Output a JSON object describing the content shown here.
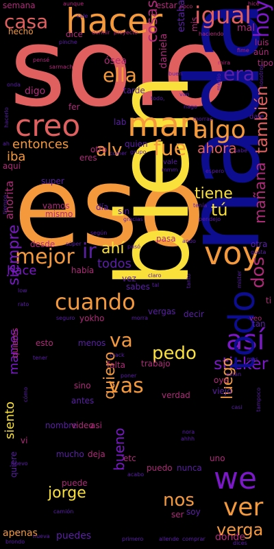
{
  "palette": {
    "background": "#000000",
    "coral": "#e0605f",
    "orange": "#f59a3c",
    "yellow": "#f9e03a",
    "navy": "#0d0d8f",
    "purple": "#7b18c8",
    "magenta": "#b02a7a",
    "violet": "#5c1fa8"
  },
  "words": [
    {
      "text": "solo",
      "color": "#e0605f"
    },
    {
      "text": "eso",
      "color": "#f59a3c"
    },
    {
      "text": "nada",
      "color": "#0d0d8f"
    },
    {
      "text": "bien",
      "color": "#f9e03a"
    },
    {
      "text": "hacer",
      "color": "#f59a3c"
    },
    {
      "text": "igual",
      "color": "#e0605f"
    },
    {
      "text": "casa",
      "color": "#e0605f"
    },
    {
      "text": "creo",
      "color": "#e0605f"
    },
    {
      "text": "man",
      "color": "#f59a3c"
    },
    {
      "text": "algo",
      "color": "#f59a3c"
    },
    {
      "text": "ella",
      "color": "#f59a3c"
    },
    {
      "text": "era",
      "color": "#5c1fa8"
    },
    {
      "text": "hoy",
      "color": "#7b18c8"
    },
    {
      "text": "cosas",
      "color": "#b02a7a"
    },
    {
      "text": "entonces",
      "color": "#f59a3c"
    },
    {
      "text": "alv",
      "color": "#f59a3c"
    },
    {
      "text": "fue",
      "color": "#f59a3c"
    },
    {
      "text": "ahora",
      "color": "#e0605f"
    },
    {
      "text": "también",
      "color": "#e0605f"
    },
    {
      "text": "iba",
      "color": "#f59a3c"
    },
    {
      "text": "tiene",
      "color": "#f9e03a"
    },
    {
      "text": "tú",
      "color": "#f9e03a"
    },
    {
      "text": "mejor",
      "color": "#f59a3c"
    },
    {
      "text": "ir",
      "color": "#5c1fa8"
    },
    {
      "text": "ahí",
      "color": "#f9e03a"
    },
    {
      "text": "todos",
      "color": "#5c1fa8"
    },
    {
      "text": "hace",
      "color": "#7b18c8"
    },
    {
      "text": "ahorita",
      "color": "#b02a7a"
    },
    {
      "text": "voy",
      "color": "#f59a3c"
    },
    {
      "text": "mañana",
      "color": "#b02a7a"
    },
    {
      "text": "dos",
      "color": "#b02a7a"
    },
    {
      "text": "cuando",
      "color": "#f59a3c"
    },
    {
      "text": "así",
      "color": "#7b18c8"
    },
    {
      "text": "siempre",
      "color": "#7b18c8"
    },
    {
      "text": "va",
      "color": "#f59a3c"
    },
    {
      "text": "pedo",
      "color": "#f9e03a"
    },
    {
      "text": "sticker",
      "color": "#7b18c8"
    },
    {
      "text": "vas",
      "color": "#f59a3c"
    },
    {
      "text": "todo",
      "color": "#0d0d8f"
    },
    {
      "text": "quiero",
      "color": "#f59a3c"
    },
    {
      "text": "mames",
      "color": "#7b18c8"
    },
    {
      "text": "luego",
      "color": "#f59a3c"
    },
    {
      "text": "siento",
      "color": "#f9e03a"
    },
    {
      "text": "we",
      "color": "#7b18c8"
    },
    {
      "text": "jorge",
      "color": "#f9e03a"
    },
    {
      "text": "bueno",
      "color": "#7b18c8"
    },
    {
      "text": "nos",
      "color": "#f59a3c"
    },
    {
      "text": "ver",
      "color": "#f59a3c"
    },
    {
      "text": "verga",
      "color": "#f59a3c"
    },
    {
      "text": "apenas",
      "color": "#f59a3c"
    },
    {
      "text": "puedes",
      "color": "#5c1fa8"
    },
    {
      "text": "donde",
      "color": "#b02a7a"
    },
    {
      "text": "semana",
      "color": "#b02a7a"
    },
    {
      "text": "hecho",
      "color": "#f59a3c"
    },
    {
      "text": "dice",
      "color": "#b02a7a"
    },
    {
      "text": "estar",
      "color": "#b02a7a"
    },
    {
      "text": "estaba",
      "color": "#5c1fa8"
    },
    {
      "text": "mis",
      "color": "#b02a7a"
    },
    {
      "text": "mal",
      "color": "#b02a7a"
    },
    {
      "text": "luis",
      "color": "#b02a7a"
    },
    {
      "text": "aún",
      "color": "#b02a7a"
    },
    {
      "text": "tipo",
      "color": "#b02a7a"
    },
    {
      "text": "ósea",
      "color": "#b02a7a"
    },
    {
      "text": "daniela",
      "color": "#b02a7a"
    },
    {
      "text": "tarde",
      "color": "#5c1fa8"
    },
    {
      "text": "digo",
      "color": "#b02a7a"
    },
    {
      "text": "fer",
      "color": "#b02a7a"
    },
    {
      "text": "lab",
      "color": "#5c1fa8"
    },
    {
      "text": "quien",
      "color": "#5c1fa8"
    },
    {
      "text": "otro",
      "color": "#b02a7a"
    },
    {
      "text": "eres",
      "color": "#b02a7a"
    },
    {
      "text": "aquí",
      "color": "#b02a7a"
    },
    {
      "text": "super",
      "color": "#5c1fa8"
    },
    {
      "text": "vamos",
      "color": "#b02a7a"
    },
    {
      "text": "mismo",
      "color": "#b02a7a"
    },
    {
      "text": "día",
      "color": "#5c1fa8"
    },
    {
      "text": "sin",
      "color": "#5c1fa8"
    },
    {
      "text": "desde",
      "color": "#b02a7a"
    },
    {
      "text": "pasa",
      "color": "#b02a7a"
    },
    {
      "text": "otra",
      "color": "#5c1fa8"
    },
    {
      "text": "había",
      "color": "#b02a7a"
    },
    {
      "text": "vez",
      "color": "#5c1fa8"
    },
    {
      "text": "sabes",
      "color": "#5c1fa8"
    },
    {
      "text": "yokho",
      "color": "#b02a7a"
    },
    {
      "text": "vergas",
      "color": "#5c1fa8"
    },
    {
      "text": "decir",
      "color": "#5c1fa8"
    },
    {
      "text": "tan",
      "color": "#5c1fa8"
    },
    {
      "text": "veo",
      "color": "#b02a7a"
    },
    {
      "text": "esto",
      "color": "#b02a7a"
    },
    {
      "text": "menos",
      "color": "#5c1fa8"
    },
    {
      "text": "quieres",
      "color": "#b02a7a"
    },
    {
      "text": "falta",
      "color": "#b02a7a"
    },
    {
      "text": "trabajo",
      "color": "#b02a7a"
    },
    {
      "text": "oye",
      "color": "#b02a7a"
    },
    {
      "text": "sino",
      "color": "#b02a7a"
    },
    {
      "text": "antes",
      "color": "#5c1fa8"
    },
    {
      "text": "verdad",
      "color": "#b02a7a"
    },
    {
      "text": "viejo",
      "color": "#5c1fa8"
    },
    {
      "text": "nombre",
      "color": "#5c1fa8"
    },
    {
      "text": "video",
      "color": "#b02a7a"
    },
    {
      "text": "asi",
      "color": "#b02a7a"
    },
    {
      "text": "mucho",
      "color": "#5c1fa8"
    },
    {
      "text": "deja",
      "color": "#b02a7a"
    },
    {
      "text": "etc",
      "color": "#b02a7a"
    },
    {
      "text": "puedo",
      "color": "#b02a7a"
    },
    {
      "text": "nunca",
      "color": "#5c1fa8"
    },
    {
      "text": "uno",
      "color": "#b02a7a"
    },
    {
      "text": "quiere",
      "color": "#5c1fa8"
    },
    {
      "text": "puede",
      "color": "#b02a7a"
    },
    {
      "text": "ser",
      "color": "#b02a7a"
    },
    {
      "text": "soy",
      "color": "#5c1fa8"
    },
    {
      "text": "vi",
      "color": "#b02a7a"
    },
    {
      "text": "ti",
      "color": "#b02a7a"
    },
    {
      "text": "aunque",
      "color": "#b02a7a"
    },
    {
      "text": "pinche",
      "color": "#5c1fa8"
    },
    {
      "text": "poco",
      "color": "#b02a7a"
    },
    {
      "text": "dormir",
      "color": "#b02a7a"
    },
    {
      "text": "proyecto",
      "color": "#b02a7a"
    },
    {
      "text": "haciendo",
      "color": "#b02a7a"
    },
    {
      "text": "fime",
      "color": "#b02a7a"
    },
    {
      "text": "hice",
      "color": "#b02a7a"
    },
    {
      "text": "pensé",
      "color": "#b02a7a"
    },
    {
      "text": "sarmach",
      "color": "#b02a7a"
    },
    {
      "text": "onda",
      "color": "#5c1fa8"
    },
    {
      "text": "mira",
      "color": "#b02a7a"
    },
    {
      "text": "nosotros",
      "color": "#5c1fa8"
    },
    {
      "text": "medio",
      "color": "#5c1fa8"
    },
    {
      "text": "hacerlo",
      "color": "#5c1fa8"
    },
    {
      "text": "todo,",
      "color": "#5c1fa8"
    },
    {
      "text": "van",
      "color": "#5c1fa8"
    },
    {
      "text": "nago",
      "color": "#5c1fa8"
    },
    {
      "text": "morras",
      "color": "#5c1fa8"
    },
    {
      "text": "dale",
      "color": "#5c1fa8"
    },
    {
      "text": "ah",
      "color": "#5c1fa8"
    },
    {
      "text": "comer",
      "color": "#5c1fa8"
    },
    {
      "text": "grupo",
      "color": "#5c1fa8"
    },
    {
      "text": "sabe",
      "color": "#5c1fa8"
    },
    {
      "text": "vale",
      "color": "#5c1fa8"
    },
    {
      "text": "mmm",
      "color": "#5c1fa8"
    },
    {
      "text": "espero",
      "color": "#5c1fa8"
    },
    {
      "text": "tenía",
      "color": "#5c1fa8"
    },
    {
      "text": "pendejo",
      "color": "#5c1fa8"
    },
    {
      "text": "tiempo",
      "color": "#5c1fa8"
    },
    {
      "text": "gracias",
      "color": "#5c1fa8"
    },
    {
      "text": "según",
      "color": "#5c1fa8"
    },
    {
      "text": "pasó",
      "color": "#5c1fa8"
    },
    {
      "text": "ando",
      "color": "#5c1fa8"
    },
    {
      "text": "gusta",
      "color": "#5c1fa8"
    },
    {
      "text": "súper",
      "color": "#5c1fa8"
    },
    {
      "text": "claro",
      "color": "#5c1fa8"
    },
    {
      "text": "tal",
      "color": "#5c1fa8"
    },
    {
      "text": "tanto",
      "color": "#5c1fa8"
    },
    {
      "text": "seguro",
      "color": "#5c1fa8"
    },
    {
      "text": "morra",
      "color": "#5c1fa8"
    },
    {
      "text": "rato",
      "color": "#5c1fa8"
    },
    {
      "text": "low",
      "color": "#5c1fa8"
    },
    {
      "text": "tener",
      "color": "#5c1fa8"
    },
    {
      "text": "crack",
      "color": "#5c1fa8"
    },
    {
      "text": "están",
      "color": "#5c1fa8"
    },
    {
      "text": "poner",
      "color": "#5c1fa8"
    },
    {
      "text": "cómo",
      "color": "#5c1fa8"
    },
    {
      "text": "casi",
      "color": "#5c1fa8"
    },
    {
      "text": "tampoco",
      "color": "#5c1fa8"
    },
    {
      "text": "nuevo",
      "color": "#5c1fa8"
    },
    {
      "text": "acabo",
      "color": "#5c1fa8"
    },
    {
      "text": "primero",
      "color": "#5c1fa8"
    },
    {
      "text": "allende",
      "color": "#5c1fa8"
    },
    {
      "text": "comprar",
      "color": "#5c1fa8"
    },
    {
      "text": "dices",
      "color": "#5c1fa8"
    },
    {
      "text": "nueva",
      "color": "#5c1fa8"
    },
    {
      "text": "camión",
      "color": "#5c1fa8"
    },
    {
      "text": "ahhh",
      "color": "#5c1fa8"
    },
    {
      "text": "nora",
      "color": "#5c1fa8"
    },
    {
      "text": "mister",
      "color": "#5c1fa8"
    },
    {
      "text": "brondo",
      "color": "#5c1fa8"
    },
    {
      "text": "mas",
      "color": "#5c1fa8"
    },
    {
      "text": "cale",
      "color": "#5c1fa8"
    },
    {
      "text": "buen",
      "color": "#5c1fa8"
    }
  ]
}
